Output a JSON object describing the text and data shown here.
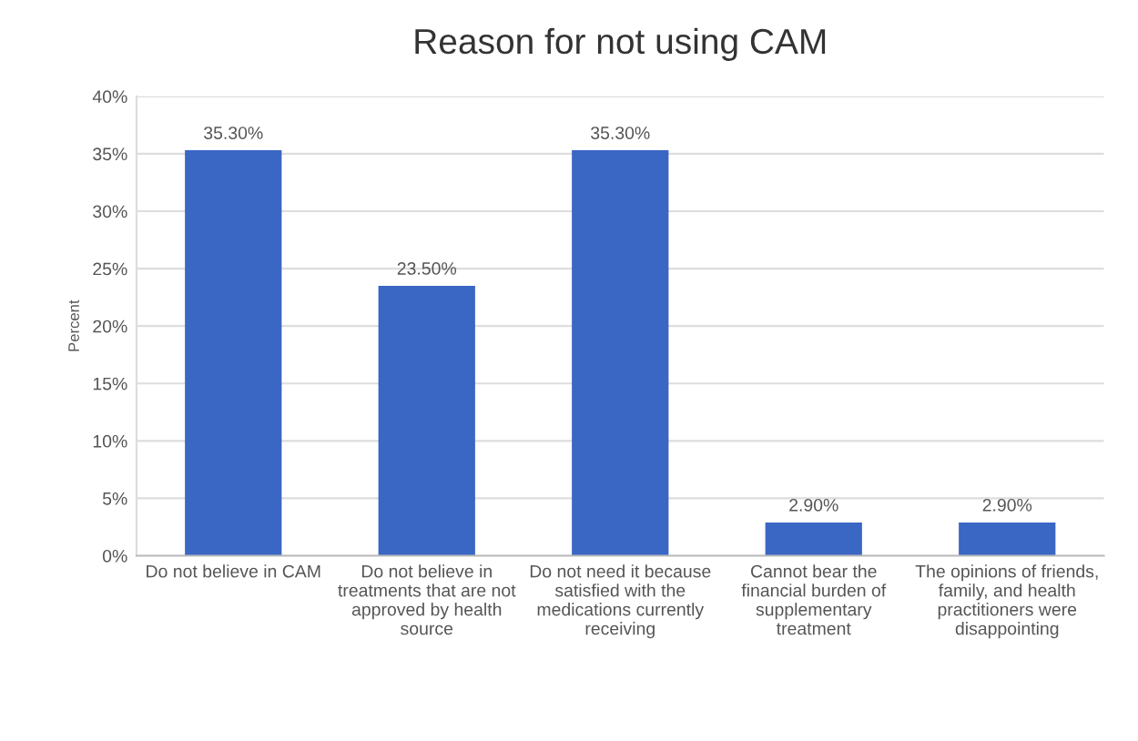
{
  "chart_data": {
    "type": "bar",
    "title": "Reason for not using CAM",
    "ylabel": "Percent",
    "categories": [
      "Do not believe in CAM",
      "Do not believe in\ntreatments that are not\napproved by health\nsource",
      "Do not need it because\nsatisfied with the\nmedications currently\nreceiving",
      "Cannot bear the\nfinancial burden of\nsupplementary\ntreatment",
      "The opinions of friends,\nfamily, and health\npractitioners were\ndisappointing"
    ],
    "values": [
      35.3,
      23.5,
      35.3,
      2.9,
      2.9
    ],
    "value_labels": [
      "35.30%",
      "23.50%",
      "35.30%",
      "2.90%",
      "2.90%"
    ],
    "color": "#3a66c4",
    "ylim": [
      0,
      40
    ],
    "yticks": [
      {
        "value": 0,
        "label": "0%"
      },
      {
        "value": 5,
        "label": "5%"
      },
      {
        "value": 10,
        "label": "10%"
      },
      {
        "value": 15,
        "label": "15%"
      },
      {
        "value": 20,
        "label": "20%"
      },
      {
        "value": 25,
        "label": "25%"
      },
      {
        "value": 30,
        "label": "30%"
      },
      {
        "value": 35,
        "label": "35%"
      },
      {
        "value": 40,
        "label": "40%"
      }
    ],
    "grid": "y"
  }
}
